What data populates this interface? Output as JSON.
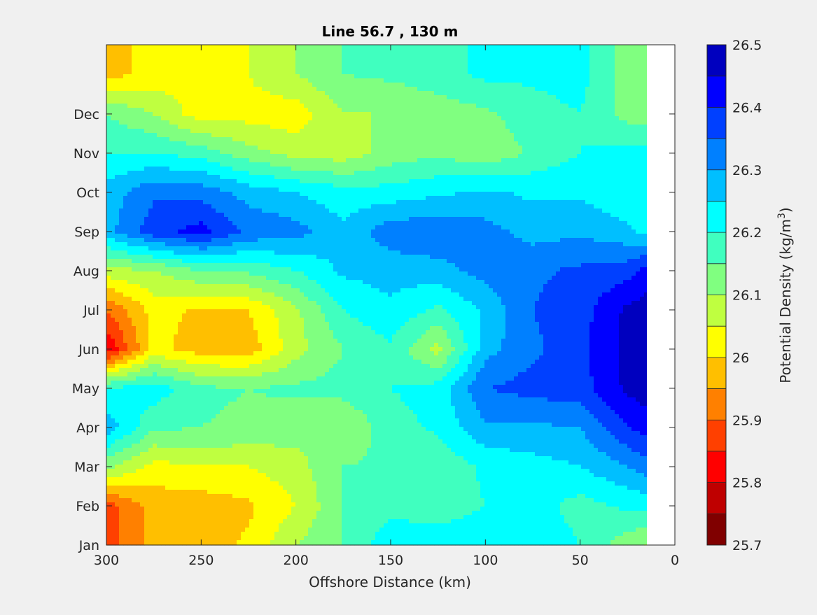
{
  "chart_data": {
    "type": "heatmap",
    "title": "Line 56.7 , 130 m",
    "xlabel": "Offshore Distance (km)",
    "ylabel": "",
    "colorbar": {
      "label": "Potential Density (kg/m",
      "label_sup": "3",
      "label_end": ")",
      "range": [
        25.7,
        26.5
      ],
      "step": 0.05,
      "tick_values": [
        25.7,
        25.8,
        25.9,
        26.0,
        26.1,
        26.2,
        26.3,
        26.4,
        26.5
      ],
      "tick_labels": [
        "25.7",
        "25.8",
        "25.9",
        "26",
        "26.1",
        "26.2",
        "26.3",
        "26.4",
        "26.5"
      ],
      "colors": [
        "#800000",
        "#bf0000",
        "#ff0000",
        "#ff4000",
        "#ff8000",
        "#ffbf00",
        "#ffff00",
        "#bfff40",
        "#80ff80",
        "#40ffbf",
        "#00ffff",
        "#00bfff",
        "#0080ff",
        "#0040ff",
        "#0000ff",
        "#0000bf"
      ]
    },
    "x_axis": {
      "range": [
        300,
        0
      ],
      "reversed": true,
      "tick_values": [
        300,
        250,
        200,
        150,
        100,
        50,
        0
      ],
      "tick_labels": [
        "300",
        "250",
        "200",
        "150",
        "100",
        "50",
        "0"
      ],
      "data_extent_km": [
        300,
        15
      ]
    },
    "y_axis": {
      "tick_labels": [
        "Jan",
        "Feb",
        "Mar",
        "Apr",
        "May",
        "Jun",
        "Jul",
        "Aug",
        "Sep",
        "Oct",
        "Nov",
        "Dec"
      ]
    },
    "grid": false,
    "x_km": [
      300,
      275,
      250,
      225,
      200,
      175,
      150,
      125,
      100,
      75,
      50,
      25,
      15
    ],
    "months": [
      "Jan",
      "Feb",
      "Mar",
      "Apr",
      "May",
      "Jun",
      "Jul",
      "Aug",
      "Sep",
      "Oct",
      "Nov",
      "Dec",
      "Jan"
    ],
    "z": [
      [
        25.87,
        25.97,
        25.97,
        26.01,
        26.1,
        26.15,
        26.24,
        26.23,
        26.24,
        26.24,
        26.2,
        26.12,
        26.1
      ],
      [
        25.88,
        25.97,
        25.97,
        25.99,
        26.05,
        26.15,
        26.18,
        26.17,
        26.2,
        26.22,
        26.18,
        26.21,
        26.21
      ],
      [
        26.12,
        26.03,
        26.05,
        26.05,
        26.08,
        26.15,
        26.16,
        26.16,
        26.21,
        26.23,
        26.25,
        26.3,
        26.33
      ],
      [
        26.28,
        26.16,
        26.15,
        26.14,
        26.12,
        26.1,
        26.18,
        26.21,
        26.29,
        26.29,
        26.3,
        26.4,
        26.42
      ],
      [
        26.2,
        26.23,
        26.16,
        26.15,
        26.16,
        26.17,
        26.2,
        26.22,
        26.35,
        26.37,
        26.38,
        26.46,
        26.48
      ],
      [
        25.8,
        26.02,
        25.97,
        25.97,
        26.08,
        26.15,
        26.19,
        26.08,
        26.28,
        26.34,
        26.38,
        26.47,
        26.49
      ],
      [
        25.9,
        26.02,
        25.99,
        26.0,
        26.09,
        26.2,
        26.24,
        26.19,
        26.26,
        26.35,
        26.38,
        26.46,
        26.47
      ],
      [
        26.08,
        26.1,
        26.15,
        26.16,
        26.2,
        26.26,
        26.27,
        26.28,
        26.32,
        26.34,
        26.36,
        26.38,
        26.42
      ],
      [
        26.28,
        26.38,
        26.42,
        26.34,
        26.32,
        26.26,
        26.33,
        26.34,
        26.32,
        26.28,
        26.29,
        26.26,
        26.24
      ],
      [
        26.27,
        26.34,
        26.33,
        26.28,
        26.25,
        26.22,
        26.22,
        26.24,
        26.26,
        26.24,
        26.24,
        26.21,
        26.2
      ],
      [
        26.2,
        26.2,
        26.18,
        26.12,
        26.08,
        26.07,
        26.12,
        26.14,
        26.11,
        26.16,
        26.2,
        26.22,
        26.22
      ],
      [
        26.15,
        26.1,
        26.02,
        26.03,
        26.02,
        26.1,
        26.1,
        26.12,
        26.14,
        26.18,
        26.2,
        26.13,
        26.13
      ],
      [
        25.98,
        26.02,
        26.04,
        26.05,
        26.1,
        26.15,
        26.16,
        26.18,
        26.21,
        26.21,
        26.22,
        26.12,
        26.12
      ]
    ]
  }
}
